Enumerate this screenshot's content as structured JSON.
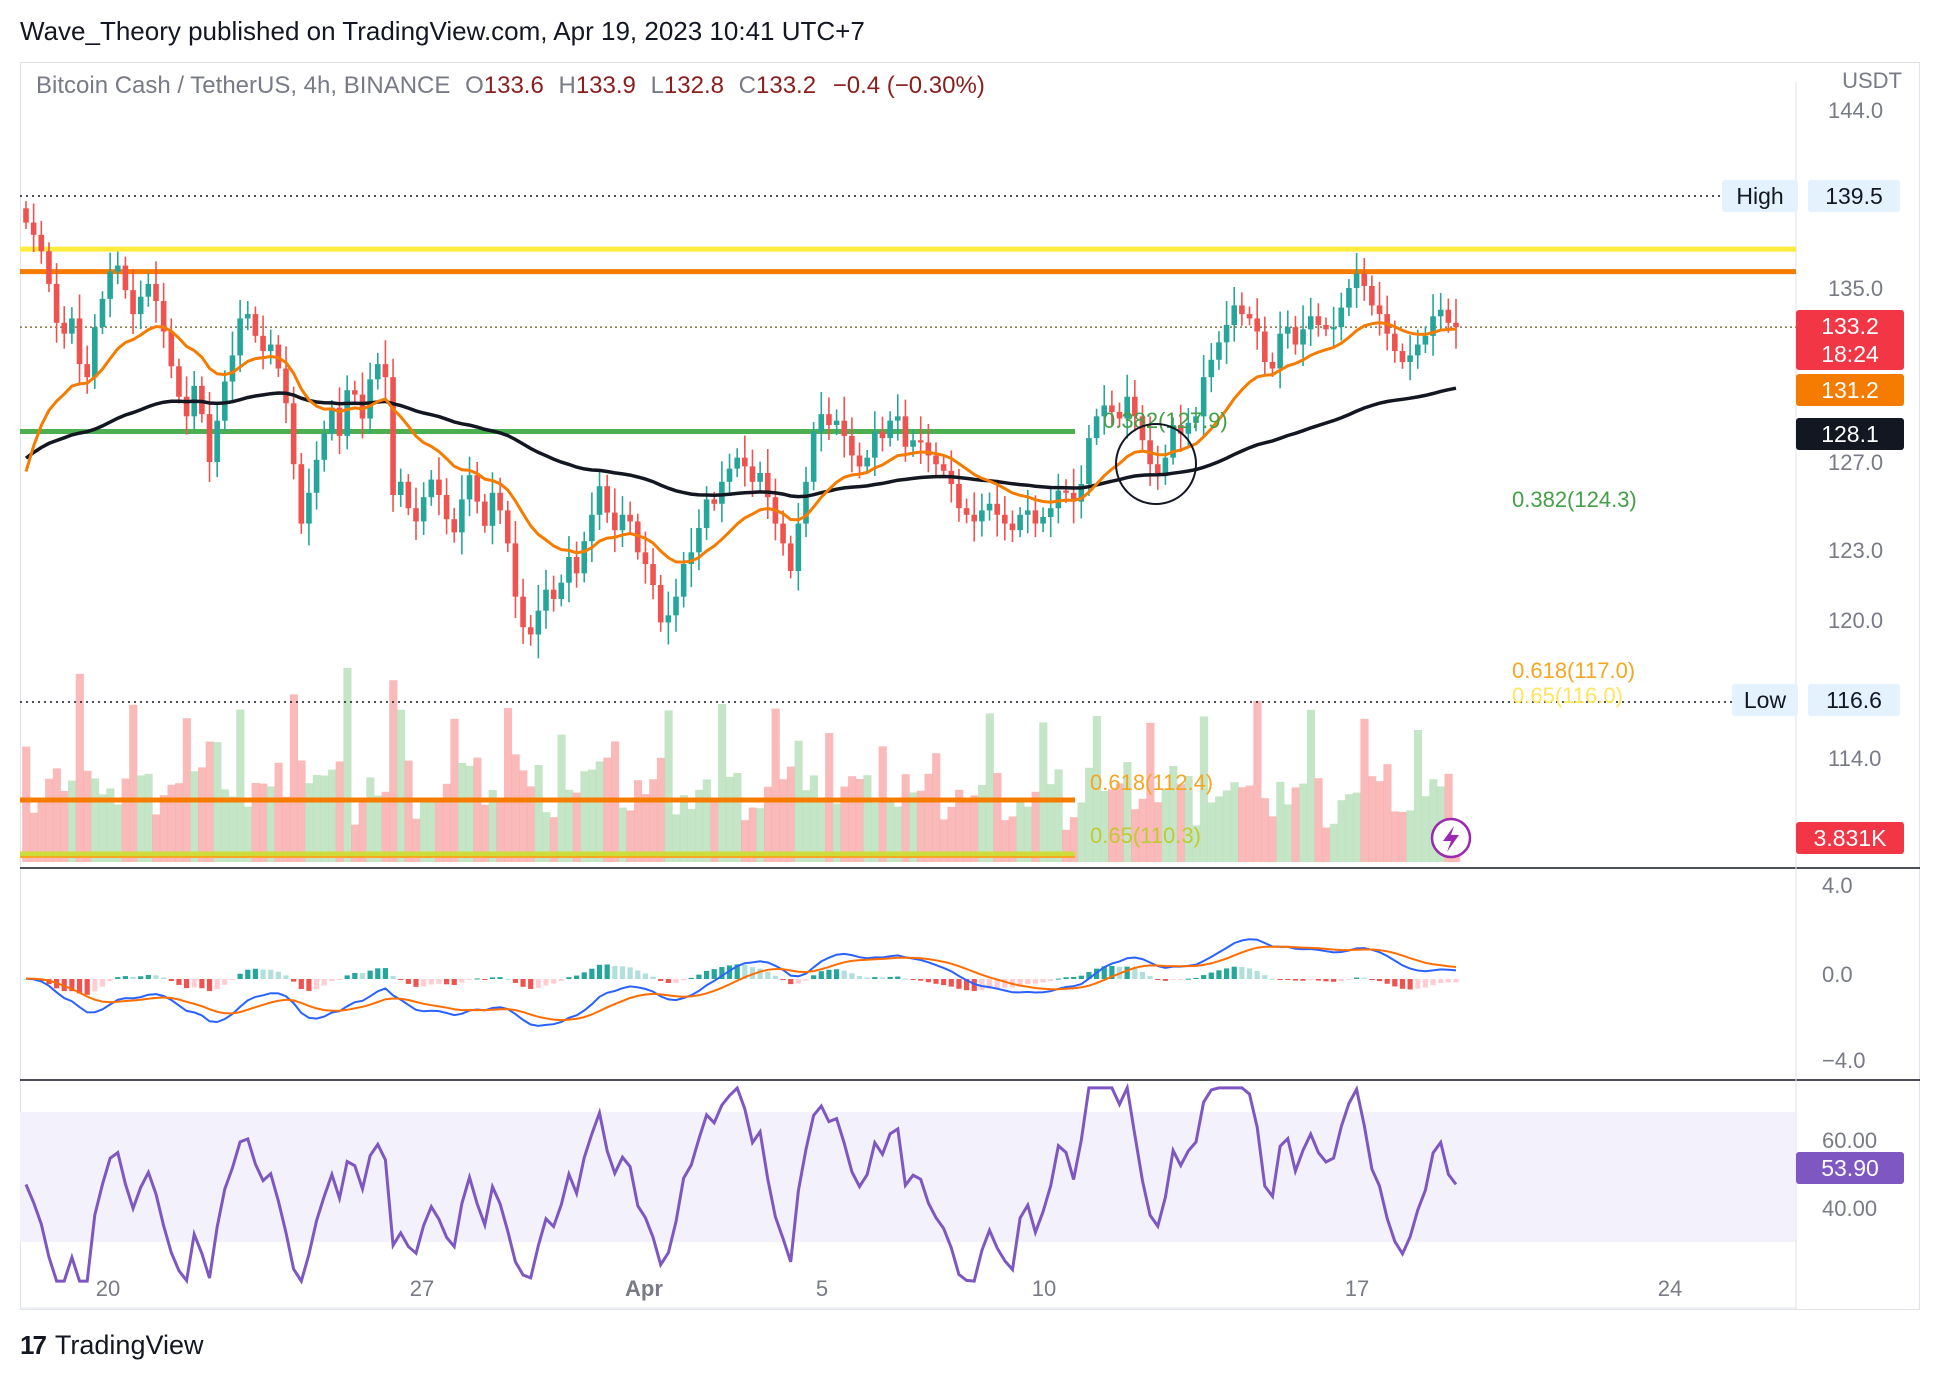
{
  "header": {
    "published_text": "Wave_Theory published on TradingView.com, Apr 19, 2023 10:41 UTC+7"
  },
  "legend": {
    "symbol_text": "Bitcoin Cash / TetherUS, 4h, BINANCE",
    "o_label": "O",
    "o_value": "133.6",
    "h_label": "H",
    "h_value": "133.9",
    "l_label": "L",
    "l_value": "132.8",
    "c_label": "C",
    "c_value": "133.2",
    "change": "−0.4 (−0.30%)"
  },
  "currency": "USDT",
  "footer": {
    "brand": "TradingView",
    "logo_glyph": "17"
  },
  "colors": {
    "up": "#26a69a",
    "down": "#ef5350",
    "ema_orange": "#f57c00",
    "ema_black": "#131722",
    "yellow": "#ffeb3b",
    "green": "#4caf50",
    "macd": "#2962ff",
    "signal": "#ff6d00",
    "rsi": "#7e57c2"
  },
  "chart_data": {
    "type": "candlestick",
    "price_axis": {
      "ticks": [
        "144.0",
        "135.0",
        "127.0",
        "123.0",
        "120.0",
        "114.0"
      ],
      "tick_values": [
        144.0,
        135.0,
        127.0,
        123.0,
        120.0,
        114.0
      ]
    },
    "time_axis": {
      "labels": [
        "20",
        "27",
        "Apr",
        "5",
        "10",
        "17",
        "24"
      ]
    },
    "levels": [
      {
        "label": "High",
        "value": 139.5,
        "display": "139.5"
      },
      {
        "label": "Low",
        "value": 116.6,
        "display": "116.6"
      }
    ],
    "resistance_lines": [
      {
        "color": "yellow",
        "value": 136.9
      },
      {
        "color": "orange",
        "value": 135.8
      },
      {
        "color": "green",
        "value": 128.4
      }
    ],
    "fib_labels": [
      {
        "text": "0.382(127.9)",
        "color": "green"
      },
      {
        "text": "0.382(124.3)",
        "color": "green"
      },
      {
        "text": "0.618(117.0)",
        "color": "orange"
      },
      {
        "text": "0.65(116.0)",
        "color": "yellow"
      },
      {
        "text": "0.618(112.4)",
        "color": "orange"
      },
      {
        "text": "0.65(110.3)",
        "color": "olive"
      }
    ],
    "price_badges": [
      {
        "value": "133.2",
        "sub": "18:24",
        "color": "#f23645"
      },
      {
        "value": "131.2",
        "color": "#f57c00"
      },
      {
        "value": "128.1",
        "color": "#131722"
      }
    ],
    "volume_badge": "3.831K",
    "closes": [
      138.2,
      137.6,
      136.8,
      135.2,
      133.4,
      132.9,
      133.6,
      131.5,
      130.9,
      133.2,
      134.5,
      135.8,
      136.1,
      134.9,
      133.8,
      134.6,
      135.2,
      134.4,
      133.0,
      131.4,
      130.0,
      129.1,
      130.5,
      129.2,
      127.0,
      128.9,
      130.7,
      131.9,
      133.6,
      133.8,
      132.8,
      132.1,
      132.4,
      131.3,
      129.7,
      126.9,
      124.2,
      125.6,
      127.1,
      128.3,
      129.5,
      128.2,
      130.3,
      130.1,
      129.0,
      130.8,
      131.5,
      130.9,
      125.5,
      126.1,
      124.9,
      124.3,
      125.4,
      126.2,
      125.5,
      124.4,
      123.8,
      125.3,
      126.4,
      125.2,
      124.1,
      125.6,
      124.8,
      123.3,
      121.0,
      119.7,
      119.4,
      120.4,
      121.3,
      120.9,
      121.6,
      122.7,
      122.0,
      123.4,
      124.6,
      125.9,
      124.7,
      123.9,
      124.6,
      124.3,
      122.9,
      122.4,
      121.5,
      119.9,
      120.2,
      121.0,
      122.4,
      122.9,
      124.0,
      125.3,
      125.1,
      126.1,
      126.7,
      127.2,
      126.8,
      126.1,
      126.5,
      125.4,
      124.2,
      123.3,
      122.1,
      124.2,
      126.1,
      128.4,
      129.2,
      128.7,
      128.9,
      128.2,
      127.3,
      126.8,
      127.2,
      128.4,
      128.1,
      128.9,
      129.1,
      127.7,
      128.0,
      127.9,
      127.3,
      126.9,
      126.6,
      126.0,
      124.9,
      124.6,
      124.3,
      124.8,
      125.1,
      124.6,
      124.2,
      123.9,
      124.6,
      124.8,
      124.2,
      124.5,
      124.9,
      125.7,
      125.6,
      125.2,
      126.0,
      128.1,
      129.1,
      129.6,
      129.3,
      129.0,
      130.0,
      129.1,
      128.0,
      126.9,
      126.5,
      127.2,
      128.7,
      128.3,
      128.8,
      129.1,
      130.9,
      131.7,
      132.5,
      133.3,
      134.2,
      133.8,
      133.6,
      133.0,
      131.6,
      131.3,
      132.9,
      133.2,
      132.4,
      133.1,
      133.7,
      133.3,
      133.1,
      133.2,
      134.1,
      135.0,
      135.7,
      135.1,
      134.2,
      133.8,
      132.9,
      132.1,
      131.6,
      131.9,
      132.4,
      132.8,
      133.7,
      134.0,
      133.4,
      133.2
    ]
  }
}
